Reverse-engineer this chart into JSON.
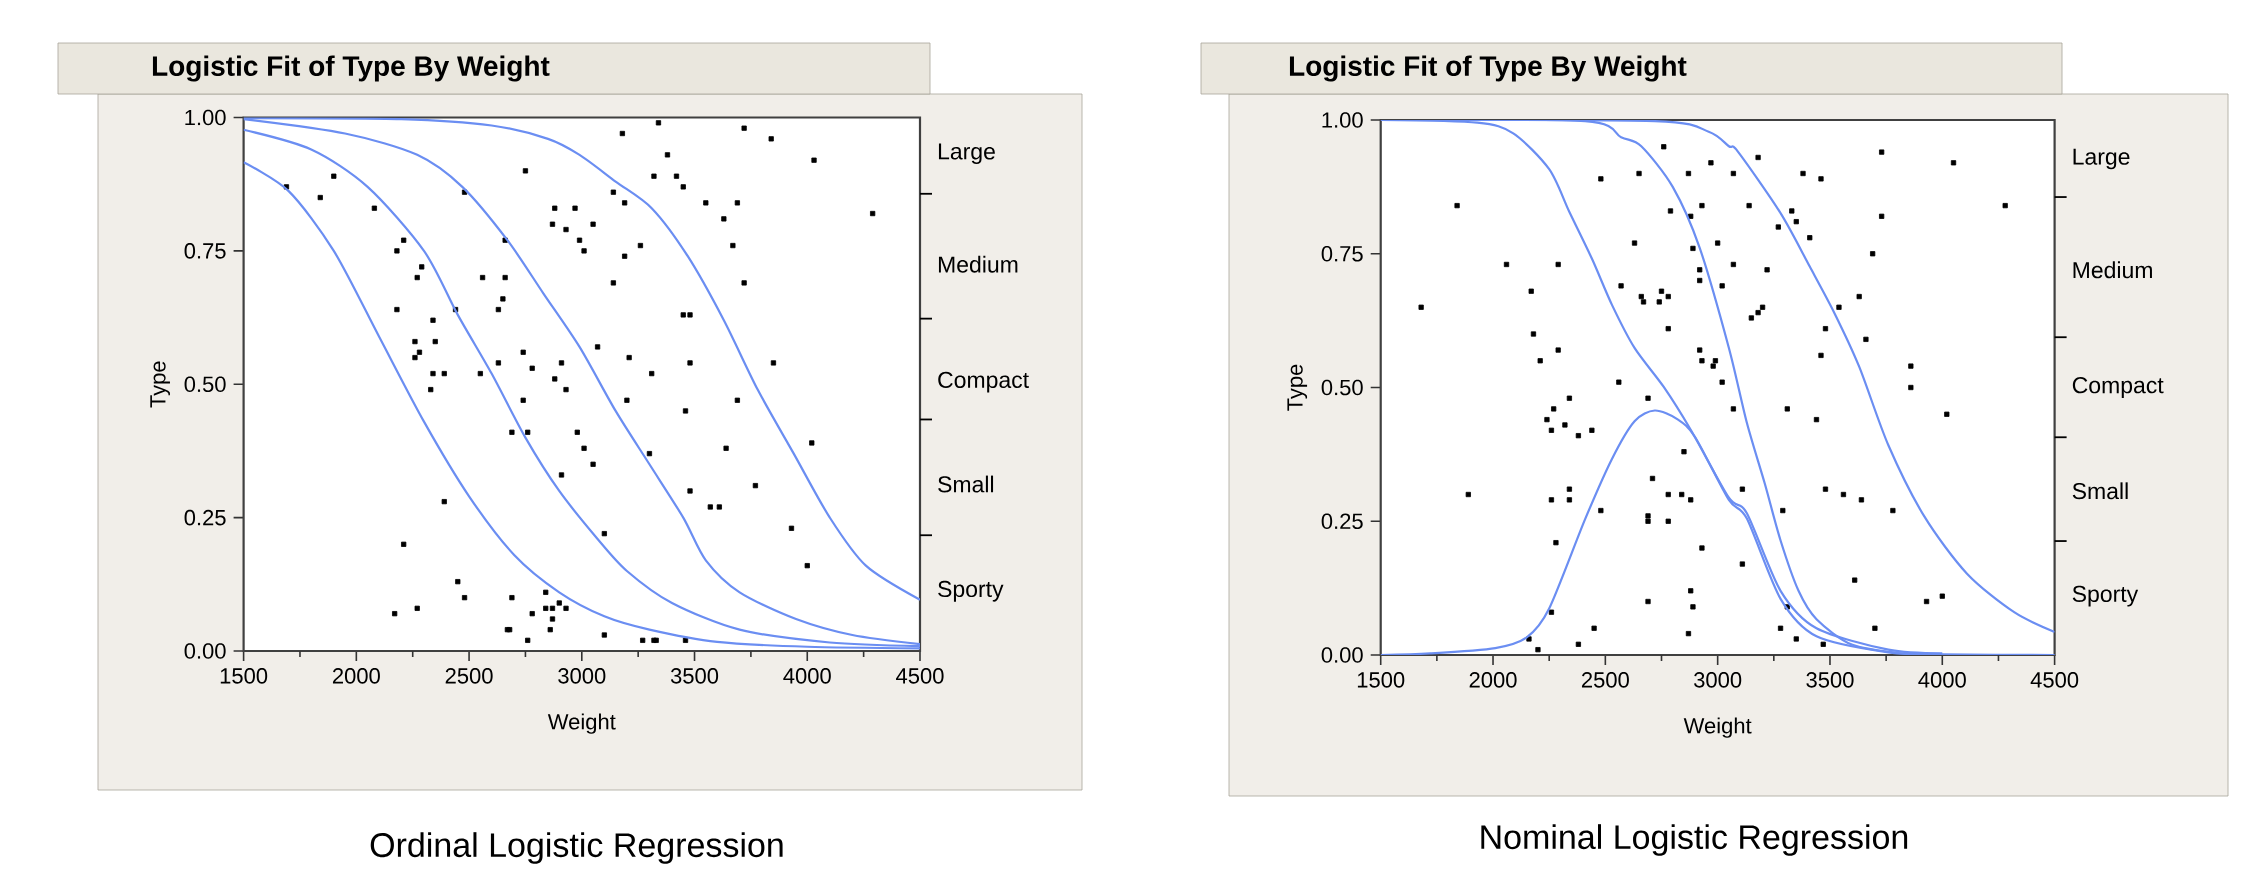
{
  "chart_data": [
    {
      "type": "scatter",
      "title": "Logistic Fit of Type By Weight",
      "xlabel": "Weight",
      "ylabel": "Type",
      "annotations": [
        "Ordinal Logistic Regression",
        "Large",
        "Medium",
        "Compact",
        "Small",
        "Sporty"
      ],
      "xlim": [
        1500,
        4500
      ],
      "xticks": [
        1500,
        {
          "value": 1750,
          "label": null
        },
        2000,
        {
          "value": 2250,
          "label": null
        },
        2500,
        {
          "value": 2750,
          "label": null
        },
        3000,
        {
          "value": 3250,
          "label": null
        },
        3500,
        {
          "value": 3750,
          "label": null
        },
        4000,
        {
          "value": 4250,
          "label": null
        },
        4500
      ],
      "ylim": [
        0,
        1
      ],
      "yticks": [
        {
          "value": 0,
          "label": "0.00"
        },
        {
          "value": 0.25,
          "label": "0.25"
        },
        {
          "value": 0.5,
          "label": "0.50"
        },
        {
          "value": 0.75,
          "label": "0.75"
        },
        {
          "value": 1,
          "label": "1.00"
        }
      ],
      "series": [
        {
          "color": "#000000",
          "marker": "square",
          "x": [
            1690,
            1900,
            1840,
            2080,
            2210,
            2180,
            2290,
            2270,
            2180,
            2340,
            2440,
            2260,
            2350,
            2280,
            2260,
            2340,
            2390,
            2330,
            2390,
            2210,
            2450,
            2480,
            2270,
            2170,
            2480,
            2750,
            2660,
            2560,
            2660,
            2650,
            2630,
            2550,
            2630,
            2740,
            2780,
            2740,
            2760,
            2690,
            2880,
            2970,
            2870,
            2930,
            2990,
            3010,
            3050,
            2910,
            2880,
            2930,
            2980,
            3010,
            3050,
            2910,
            2690,
            2840,
            2840,
            2870,
            2900,
            2930,
            2870,
            2780,
            2670,
            2680,
            2860,
            2760,
            3070,
            3340,
            3180,
            3720,
            3840,
            4030,
            3380,
            3320,
            3420,
            3450,
            3140,
            3190,
            3550,
            3690,
            3630,
            4290,
            3260,
            3190,
            3670,
            3140,
            3720,
            3450,
            3480,
            3210,
            3480,
            3310,
            3850,
            3200,
            3690,
            3460,
            4020,
            3300,
            3640,
            3480,
            3770,
            3570,
            3610,
            3100,
            3930,
            4000,
            3100,
            3270,
            3320,
            3330,
            3460
          ],
          "values": [
            0.87,
            0.89,
            0.85,
            0.83,
            0.77,
            0.75,
            0.72,
            0.7,
            0.64,
            0.62,
            0.64,
            0.58,
            0.58,
            0.56,
            0.55,
            0.52,
            0.52,
            0.49,
            0.28,
            0.2,
            0.13,
            0.1,
            0.08,
            0.07,
            0.86,
            0.9,
            0.77,
            0.7,
            0.7,
            0.66,
            0.64,
            0.52,
            0.54,
            0.56,
            0.53,
            0.47,
            0.41,
            0.41,
            0.83,
            0.83,
            0.8,
            0.79,
            0.77,
            0.75,
            0.8,
            0.54,
            0.51,
            0.49,
            0.41,
            0.38,
            0.35,
            0.33,
            0.1,
            0.11,
            0.08,
            0.08,
            0.09,
            0.08,
            0.06,
            0.07,
            0.04,
            0.04,
            0.04,
            0.02,
            0.57,
            0.99,
            0.97,
            0.98,
            0.96,
            0.92,
            0.93,
            0.89,
            0.89,
            0.87,
            0.86,
            0.84,
            0.84,
            0.84,
            0.81,
            0.82,
            0.76,
            0.74,
            0.76,
            0.69,
            0.69,
            0.63,
            0.63,
            0.55,
            0.54,
            0.52,
            0.54,
            0.47,
            0.47,
            0.45,
            0.39,
            0.37,
            0.38,
            0.3,
            0.31,
            0.27,
            0.27,
            0.22,
            0.23,
            0.16,
            0.03,
            0.02,
            0.02,
            0.02,
            0.02
          ]
        },
        {
          "type": "line",
          "color": "#6b8ef2",
          "marker": "none",
          "x": [
            1500,
            1700,
            1900,
            2100,
            2300,
            2500,
            2700,
            2900,
            3100,
            3300,
            3600,
            4000,
            4500
          ],
          "values": [
            0.916,
            0.862,
            0.75,
            0.59,
            0.43,
            0.29,
            0.18,
            0.11,
            0.065,
            0.04,
            0.017,
            0.008,
            0.005
          ]
        },
        {
          "type": "line",
          "color": "#6b8ef2",
          "marker": "none",
          "x": [
            1500,
            1800,
            2050,
            2300,
            2450,
            2600,
            2750,
            2900,
            3070,
            3200,
            3400,
            3700,
            4100,
            4500
          ],
          "values": [
            0.977,
            0.94,
            0.87,
            0.75,
            0.63,
            0.52,
            0.4,
            0.3,
            0.21,
            0.15,
            0.09,
            0.04,
            0.016,
            0.009
          ]
        },
        {
          "type": "line",
          "color": "#6b8ef2",
          "marker": "none",
          "x": [
            1500,
            1950,
            2270,
            2470,
            2670,
            2830,
            2990,
            3150,
            3300,
            3450,
            3550,
            3700,
            3950,
            4200,
            4500
          ],
          "values": [
            0.997,
            0.97,
            0.93,
            0.87,
            0.77,
            0.67,
            0.57,
            0.45,
            0.35,
            0.25,
            0.17,
            0.11,
            0.06,
            0.03,
            0.013
          ]
        },
        {
          "type": "line",
          "color": "#6b8ef2",
          "marker": "none",
          "x": [
            1500,
            2200,
            2600,
            2850,
            2990,
            3150,
            3310,
            3470,
            3630,
            3780,
            3940,
            4100,
            4260,
            4500
          ],
          "values": [
            0.999,
            0.997,
            0.985,
            0.96,
            0.93,
            0.88,
            0.83,
            0.74,
            0.62,
            0.49,
            0.37,
            0.25,
            0.16,
            0.096
          ]
        }
      ]
    },
    {
      "type": "scatter",
      "title": "Logistic Fit of Type By Weight",
      "xlabel": "Weight",
      "ylabel": "Type",
      "annotations": [
        "Nominal Logistic Regression",
        "Large",
        "Medium",
        "Compact",
        "Small",
        "Sporty"
      ],
      "xlim": [
        1500,
        4500
      ],
      "xticks": [
        1500,
        {
          "value": 1750,
          "label": null
        },
        2000,
        {
          "value": 2250,
          "label": null
        },
        2500,
        {
          "value": 2750,
          "label": null
        },
        3000,
        {
          "value": 3250,
          "label": null
        },
        3500,
        {
          "value": 3750,
          "label": null
        },
        4000,
        {
          "value": 4250,
          "label": null
        },
        4500
      ],
      "ylim": [
        0,
        1
      ],
      "yticks": [
        {
          "value": 0,
          "label": "0.00"
        },
        {
          "value": 0.25,
          "label": "0.25"
        },
        {
          "value": 0.5,
          "label": "0.50"
        },
        {
          "value": 0.75,
          "label": "0.75"
        },
        {
          "value": 1,
          "label": "1.00"
        }
      ],
      "series": [
        {
          "color": "#000000",
          "marker": "square",
          "x": [
            1680,
            1840,
            1890,
            2060,
            2290,
            2170,
            2180,
            2290,
            2210,
            2270,
            2340,
            2240,
            2260,
            2320,
            2380,
            2440,
            2340,
            2260,
            2340,
            2480,
            2280,
            2260,
            2160,
            2200,
            2380,
            2450,
            2480,
            2650,
            2760,
            2870,
            2970,
            2790,
            2880,
            2930,
            2630,
            2890,
            3000,
            2920,
            2920,
            3020,
            2570,
            2660,
            2670,
            2750,
            2780,
            2740,
            2780,
            2920,
            2930,
            2990,
            2980,
            3020,
            2560,
            2690,
            2850,
            2710,
            2780,
            2840,
            2880,
            2690,
            2690,
            2780,
            2930,
            2880,
            2890,
            2690,
            2870,
            3070,
            3070,
            3070,
            3180,
            3140,
            3220,
            3200,
            3180,
            3150,
            3110,
            3110,
            3290,
            3310,
            3270,
            3330,
            3350,
            3410,
            3380,
            3460,
            3730,
            4050,
            4280,
            3730,
            3690,
            3630,
            3540,
            3480,
            3660,
            3460,
            3860,
            3860,
            4020,
            3440,
            3480,
            3560,
            3640,
            3780,
            3610,
            3930,
            4000,
            3310,
            3280,
            3350,
            3470,
            3700
          ],
          "values": [
            0.65,
            0.84,
            0.3,
            0.73,
            0.73,
            0.68,
            0.6,
            0.57,
            0.55,
            0.46,
            0.48,
            0.44,
            0.42,
            0.43,
            0.41,
            0.42,
            0.31,
            0.29,
            0.29,
            0.27,
            0.21,
            0.08,
            0.03,
            0.01,
            0.02,
            0.05,
            0.89,
            0.9,
            0.95,
            0.9,
            0.92,
            0.83,
            0.82,
            0.84,
            0.77,
            0.76,
            0.77,
            0.72,
            0.7,
            0.69,
            0.69,
            0.67,
            0.66,
            0.68,
            0.67,
            0.66,
            0.61,
            0.57,
            0.55,
            0.55,
            0.54,
            0.51,
            0.51,
            0.48,
            0.38,
            0.33,
            0.3,
            0.3,
            0.29,
            0.25,
            0.26,
            0.25,
            0.2,
            0.12,
            0.09,
            0.1,
            0.04,
            0.73,
            0.46,
            0.9,
            0.93,
            0.84,
            0.72,
            0.65,
            0.64,
            0.63,
            0.31,
            0.17,
            0.27,
            0.46,
            0.8,
            0.83,
            0.81,
            0.78,
            0.9,
            0.89,
            0.94,
            0.92,
            0.84,
            0.82,
            0.75,
            0.67,
            0.65,
            0.61,
            0.59,
            0.56,
            0.54,
            0.5,
            0.45,
            0.44,
            0.31,
            0.3,
            0.29,
            0.27,
            0.14,
            0.1,
            0.11,
            0.09,
            0.05,
            0.03,
            0.02,
            0.05
          ]
        },
        {
          "type": "line",
          "color": "#6b8ef2",
          "marker": "none",
          "x": [
            1500,
            1720,
            2010,
            2150,
            2250,
            2410,
            2530,
            2630,
            2720,
            2820,
            2900,
            3050,
            3130,
            3280,
            3440,
            3760,
            4000,
            4500
          ],
          "values": [
            0.0,
            0.003,
            0.013,
            0.033,
            0.087,
            0.254,
            0.367,
            0.437,
            0.457,
            0.441,
            0.407,
            0.29,
            0.255,
            0.105,
            0.035,
            0.005,
            0.001,
            0.0
          ]
        },
        {
          "type": "line",
          "color": "#6b8ef2",
          "marker": "none",
          "x": [
            1500,
            1930,
            2090,
            2250,
            2340,
            2440,
            2530,
            2630,
            2760,
            2880,
            3050,
            3130,
            3280,
            3440,
            3760,
            4000
          ],
          "values": [
            1.0,
            0.995,
            0.975,
            0.908,
            0.828,
            0.741,
            0.654,
            0.574,
            0.501,
            0.421,
            0.294,
            0.265,
            0.12,
            0.05,
            0.01,
            0.003
          ]
        },
        {
          "type": "line",
          "color": "#6b8ef2",
          "marker": "none",
          "x": [
            1500,
            2410,
            2570,
            2660,
            2800,
            2920,
            3050,
            3130,
            3210,
            3280,
            3360,
            3440,
            3600,
            3840,
            4000,
            4500
          ],
          "values": [
            1.0,
            0.998,
            0.968,
            0.951,
            0.875,
            0.761,
            0.574,
            0.434,
            0.32,
            0.214,
            0.12,
            0.067,
            0.019,
            0.002,
            0.0,
            0.0
          ]
        },
        {
          "type": "line",
          "color": "#6b8ef2",
          "marker": "none",
          "x": [
            1500,
            2720,
            2960,
            3050,
            3090,
            3280,
            3410,
            3520,
            3630,
            3760,
            3920,
            4110,
            4320,
            4500
          ],
          "values": [
            1.0,
            0.998,
            0.978,
            0.951,
            0.941,
            0.826,
            0.726,
            0.639,
            0.539,
            0.392,
            0.259,
            0.152,
            0.08,
            0.043
          ]
        }
      ]
    }
  ]
}
